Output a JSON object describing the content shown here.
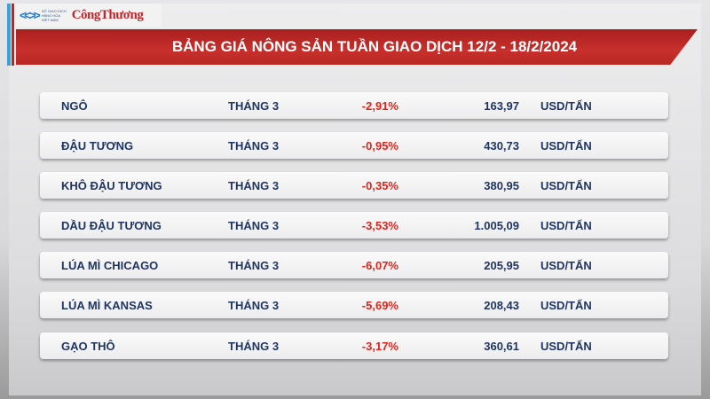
{
  "header": {
    "logo_text_small": "SỞ GIAO DỊCH HÀNG HÓA VIỆT NAM",
    "logo_name": "CôngThương",
    "title": "BẢNG GIÁ NÔNG SẢN TUẦN GIAO DỊCH 12/2 - 18/2/2024"
  },
  "colors": {
    "banner": "#c0302c",
    "text": "#1f3560",
    "negative": "#e2231a"
  },
  "rows": [
    {
      "name": "NGÔ",
      "month": "THÁNG 3",
      "change": "-2,91%",
      "price": "163,97",
      "unit": "USD/TẤN"
    },
    {
      "name": "ĐẬU TƯƠNG",
      "month": "THÁNG 3",
      "change": "-0,95%",
      "price": "430,73",
      "unit": "USD/TẤN"
    },
    {
      "name": "KHÔ ĐẬU TƯƠNG",
      "month": "THÁNG 3",
      "change": "-0,35%",
      "price": "380,95",
      "unit": "USD/TẤN"
    },
    {
      "name": "DẦU ĐẬU TƯƠNG",
      "month": "THÁNG 3",
      "change": "-3,53%",
      "price": "1.005,09",
      "unit": "USD/TẤN"
    },
    {
      "name": "LÚA MÌ CHICAGO",
      "month": "THÁNG 3",
      "change": "-6,07%",
      "price": "205,95",
      "unit": "USD/TẤN"
    },
    {
      "name": "LÚA MÌ KANSAS",
      "month": "THÁNG 3",
      "change": "-5,69%",
      "price": "208,43",
      "unit": "USD/TẤN"
    },
    {
      "name": "GẠO THÔ",
      "month": "THÁNG 3",
      "change": "-3,17%",
      "price": "360,61",
      "unit": "USD/TẤN"
    }
  ]
}
